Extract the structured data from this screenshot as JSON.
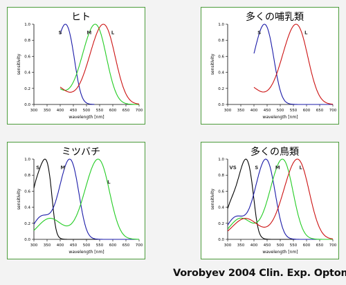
{
  "caption": "Vorobyev 2004 Clin. Exp. Optom.",
  "colors": {
    "border": "#4b9b3a",
    "red": "#cc1111",
    "green": "#22cc22",
    "blue": "#1a1aa8",
    "black": "#000000"
  },
  "chart_data": [
    {
      "type": "line",
      "title": "ヒト",
      "xlabel": "wavelength [nm]",
      "ylabel": "sensitivity",
      "xlim": [
        300,
        700
      ],
      "ylim": [
        0,
        1.0
      ],
      "xticks": [
        "300",
        "350",
        "400",
        "450",
        "500",
        "550",
        "600",
        "650",
        "700"
      ],
      "yticks": [
        "0.0",
        "0.2",
        "0.4",
        "0.6",
        "0.8",
        "1.0"
      ],
      "series": [
        {
          "name": "S",
          "color": "blue",
          "peak": 420,
          "x_start": 400,
          "x_end": 530
        },
        {
          "name": "M",
          "color": "green",
          "peak": 533,
          "x_start": 400,
          "x_end": 700
        },
        {
          "name": "L",
          "color": "red",
          "peak": 564,
          "x_start": 400,
          "x_end": 700
        }
      ],
      "labels": [
        {
          "text": "S",
          "x": 400,
          "y": 0.9
        },
        {
          "text": "M",
          "x": 510,
          "y": 0.9
        },
        {
          "text": "L",
          "x": 600,
          "y": 0.9
        }
      ]
    },
    {
      "type": "line",
      "title": "多くの哺乳類",
      "xlabel": "wavelength [nm]",
      "ylabel": "sensitivity",
      "xlim": [
        300,
        700
      ],
      "ylim": [
        0,
        1.0
      ],
      "xticks": [
        "300",
        "350",
        "400",
        "450",
        "500",
        "550",
        "600",
        "650",
        "700"
      ],
      "yticks": [
        "0.0",
        "0.2",
        "0.4",
        "0.6",
        "0.8",
        "1.0"
      ],
      "series": [
        {
          "name": "S",
          "color": "blue",
          "peak": 440,
          "x_start": 400,
          "x_end": 700
        },
        {
          "name": "L",
          "color": "red",
          "peak": 560,
          "x_start": 400,
          "x_end": 700
        }
      ],
      "labels": [
        {
          "text": "S",
          "x": 420,
          "y": 0.9
        },
        {
          "text": "L",
          "x": 598,
          "y": 0.9
        }
      ]
    },
    {
      "type": "line",
      "title": "ミツバチ",
      "xlabel": "wavelength [nm]",
      "ylabel": "sensitivity",
      "xlim": [
        300,
        700
      ],
      "ylim": [
        0,
        1.0
      ],
      "xticks": [
        "300",
        "350",
        "400",
        "450",
        "500",
        "550",
        "600",
        "650",
        "700"
      ],
      "yticks": [
        "0.0",
        "0.2",
        "0.4",
        "0.6",
        "0.8",
        "1.0"
      ],
      "series": [
        {
          "name": "S",
          "color": "black",
          "peak": 344,
          "x_start": 300,
          "x_end": 700
        },
        {
          "name": "M",
          "color": "blue",
          "peak": 436,
          "x_start": 300,
          "x_end": 700
        },
        {
          "name": "L",
          "color": "green",
          "peak": 544,
          "x_start": 300,
          "x_end": 700
        }
      ],
      "labels": [
        {
          "text": "S",
          "x": 315,
          "y": 0.9
        },
        {
          "text": "M",
          "x": 410,
          "y": 0.9
        },
        {
          "text": "L",
          "x": 585,
          "y": 0.72
        }
      ]
    },
    {
      "type": "line",
      "title": "多くの鳥類",
      "xlabel": "wavelength [nm]",
      "ylabel": "sensitivity",
      "xlim": [
        300,
        700
      ],
      "ylim": [
        0,
        1.0
      ],
      "xticks": [
        "300",
        "350",
        "400",
        "450",
        "500",
        "550",
        "600",
        "650",
        "700"
      ],
      "yticks": [
        "0.0",
        "0.2",
        "0.4",
        "0.6",
        "0.8",
        "1.0"
      ],
      "series": [
        {
          "name": "VS",
          "color": "black",
          "peak": 370,
          "x_start": 300,
          "x_end": 700
        },
        {
          "name": "S",
          "color": "blue",
          "peak": 445,
          "x_start": 300,
          "x_end": 700
        },
        {
          "name": "M",
          "color": "green",
          "peak": 508,
          "x_start": 300,
          "x_end": 700
        },
        {
          "name": "L",
          "color": "red",
          "peak": 565,
          "x_start": 300,
          "x_end": 700
        }
      ],
      "labels": [
        {
          "text": "VS",
          "x": 320,
          "y": 0.9
        },
        {
          "text": "S",
          "x": 410,
          "y": 0.9
        },
        {
          "text": "M",
          "x": 490,
          "y": 0.9
        },
        {
          "text": "L",
          "x": 578,
          "y": 0.9
        }
      ]
    }
  ]
}
